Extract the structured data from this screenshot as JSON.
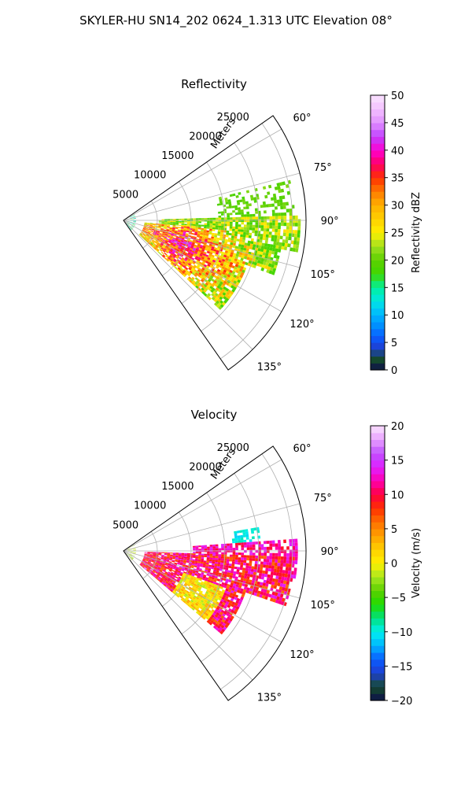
{
  "figure": {
    "title": "SKYLER-HU  SN14_202  0624_1.313 UTC Elevation 08°"
  },
  "colors": {
    "background": "#ffffff",
    "axis": "#000000",
    "grid": "#b0b0b0"
  },
  "chart_data": [
    {
      "type": "polar-sector",
      "panel": "reflectivity",
      "title": "Reflectivity",
      "radial_label": "Meters",
      "r_ticks": [
        5000,
        10000,
        15000,
        20000,
        25000
      ],
      "r_max": 27000,
      "theta_range_deg": [
        55,
        145
      ],
      "theta_ticks": [
        60,
        75,
        90,
        105,
        120,
        135
      ],
      "theta_tick_labels": [
        "60°",
        "75°",
        "90°",
        "105°",
        "120°",
        "135°"
      ],
      "echo_region_desc": "Heavy echo mainly 95-130 deg; scattered light echo 75-95 deg",
      "colorbar": {
        "label": "Reflectivity dBZ",
        "range": [
          0,
          50
        ],
        "ticks": [
          0,
          5,
          10,
          15,
          20,
          25,
          30,
          35,
          40,
          45,
          50
        ],
        "tick_labels": [
          "0",
          "5",
          "10",
          "15",
          "20",
          "25",
          "30",
          "35",
          "40",
          "45",
          "50"
        ],
        "stops": [
          {
            "v": 0,
            "c": "#0d0d4a"
          },
          {
            "v": 2,
            "c": "#154c2c"
          },
          {
            "v": 4,
            "c": "#1f3fd0"
          },
          {
            "v": 6,
            "c": "#0a5cff"
          },
          {
            "v": 8,
            "c": "#008cff"
          },
          {
            "v": 10,
            "c": "#00b5ff"
          },
          {
            "v": 12.5,
            "c": "#00e5e5"
          },
          {
            "v": 15,
            "c": "#00f0a0"
          },
          {
            "v": 17.5,
            "c": "#40d700"
          },
          {
            "v": 20,
            "c": "#5cd000"
          },
          {
            "v": 22.5,
            "c": "#a0e020"
          },
          {
            "v": 25,
            "c": "#fff000"
          },
          {
            "v": 27.5,
            "c": "#ffd000"
          },
          {
            "v": 30,
            "c": "#ffb000"
          },
          {
            "v": 32.5,
            "c": "#ff7a00"
          },
          {
            "v": 35,
            "c": "#ff3000"
          },
          {
            "v": 37.5,
            "c": "#ff0066"
          },
          {
            "v": 40,
            "c": "#ff00d0"
          },
          {
            "v": 42.5,
            "c": "#c040ff"
          },
          {
            "v": 45,
            "c": "#e090ff"
          },
          {
            "v": 47.5,
            "c": "#f3c0ff"
          },
          {
            "v": 50,
            "c": "#fae4ff"
          }
        ]
      }
    },
    {
      "type": "polar-sector",
      "panel": "velocity",
      "title": "Velocity",
      "radial_label": "Meters",
      "r_ticks": [
        5000,
        10000,
        15000,
        20000,
        25000
      ],
      "r_max": 27000,
      "theta_range_deg": [
        55,
        145
      ],
      "theta_ticks": [
        60,
        75,
        90,
        105,
        120,
        135
      ],
      "theta_tick_labels": [
        "60°",
        "75°",
        "90°",
        "105°",
        "120°",
        "135°"
      ],
      "echo_region_desc": "Mostly +5 to +15 m/s (red/magenta); yellow-green near 105-120 deg; cyan patch near 80-90 deg",
      "colorbar": {
        "label": "Velocity (m/s)",
        "range": [
          -20,
          20
        ],
        "ticks": [
          -20,
          -15,
          -10,
          -5,
          0,
          5,
          10,
          15,
          20
        ],
        "tick_labels": [
          "−20",
          "−15",
          "−10",
          "−5",
          "0",
          "5",
          "10",
          "15",
          "20"
        ],
        "stops": [
          {
            "v": -20,
            "c": "#0d0d4a"
          },
          {
            "v": -18,
            "c": "#154c2c"
          },
          {
            "v": -16,
            "c": "#1f3fd0"
          },
          {
            "v": -14,
            "c": "#0a5cff"
          },
          {
            "v": -12,
            "c": "#00b5ff"
          },
          {
            "v": -10,
            "c": "#00f0f0"
          },
          {
            "v": -8,
            "c": "#00e080"
          },
          {
            "v": -6,
            "c": "#20dc00"
          },
          {
            "v": -4,
            "c": "#5cd000"
          },
          {
            "v": -2,
            "c": "#a8e820"
          },
          {
            "v": 0,
            "c": "#fff000"
          },
          {
            "v": 2,
            "c": "#ffd000"
          },
          {
            "v": 4,
            "c": "#ffa000"
          },
          {
            "v": 6,
            "c": "#ff7000"
          },
          {
            "v": 8,
            "c": "#ff3000"
          },
          {
            "v": 10,
            "c": "#ff0040"
          },
          {
            "v": 12,
            "c": "#ff00b0"
          },
          {
            "v": 14,
            "c": "#e020ff"
          },
          {
            "v": 16,
            "c": "#c050ff"
          },
          {
            "v": 18,
            "c": "#e8a0ff"
          },
          {
            "v": 20,
            "c": "#fae4ff"
          }
        ]
      }
    }
  ]
}
